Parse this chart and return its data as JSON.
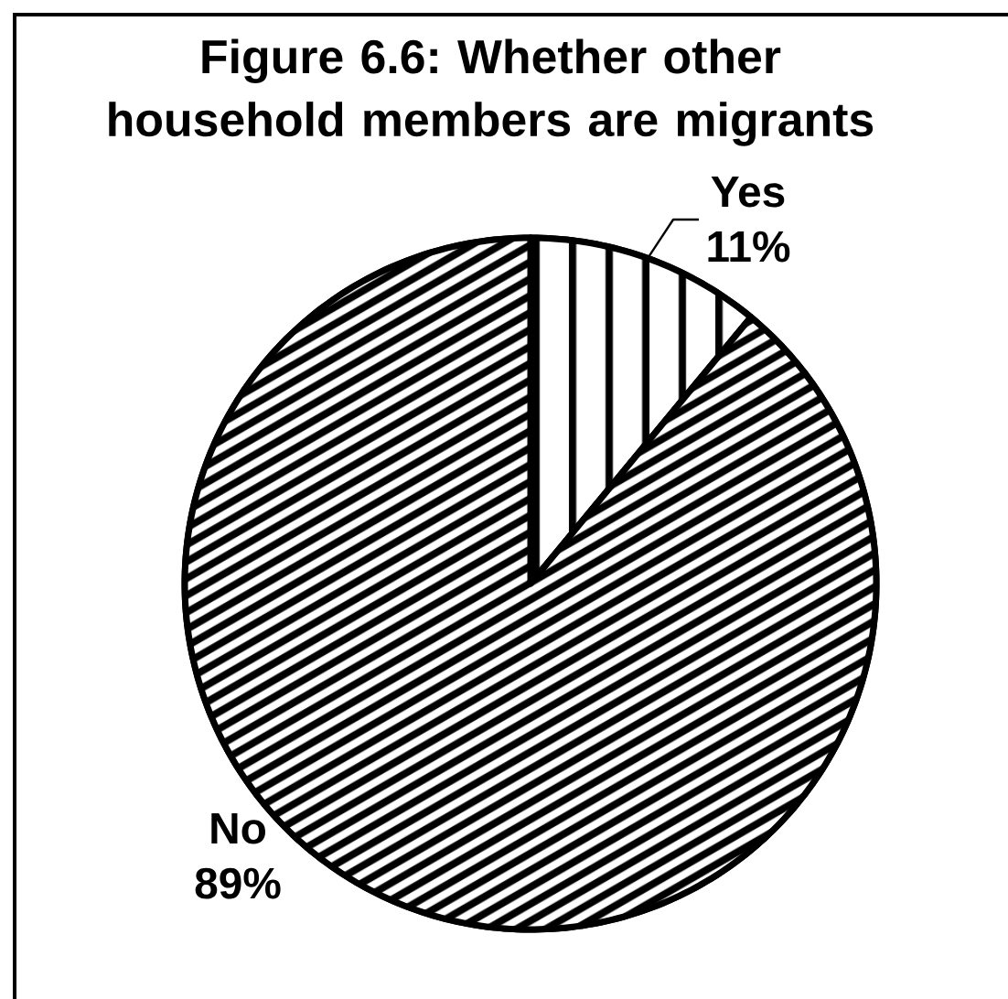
{
  "chart_data": {
    "type": "pie",
    "title": "Figure 6.6: Whether other household members are migrants",
    "categories": [
      "Yes",
      "No"
    ],
    "values": [
      11,
      89
    ],
    "colors": [
      "#000000",
      "#000000"
    ],
    "value_labels": [
      "11%",
      "89%"
    ]
  }
}
